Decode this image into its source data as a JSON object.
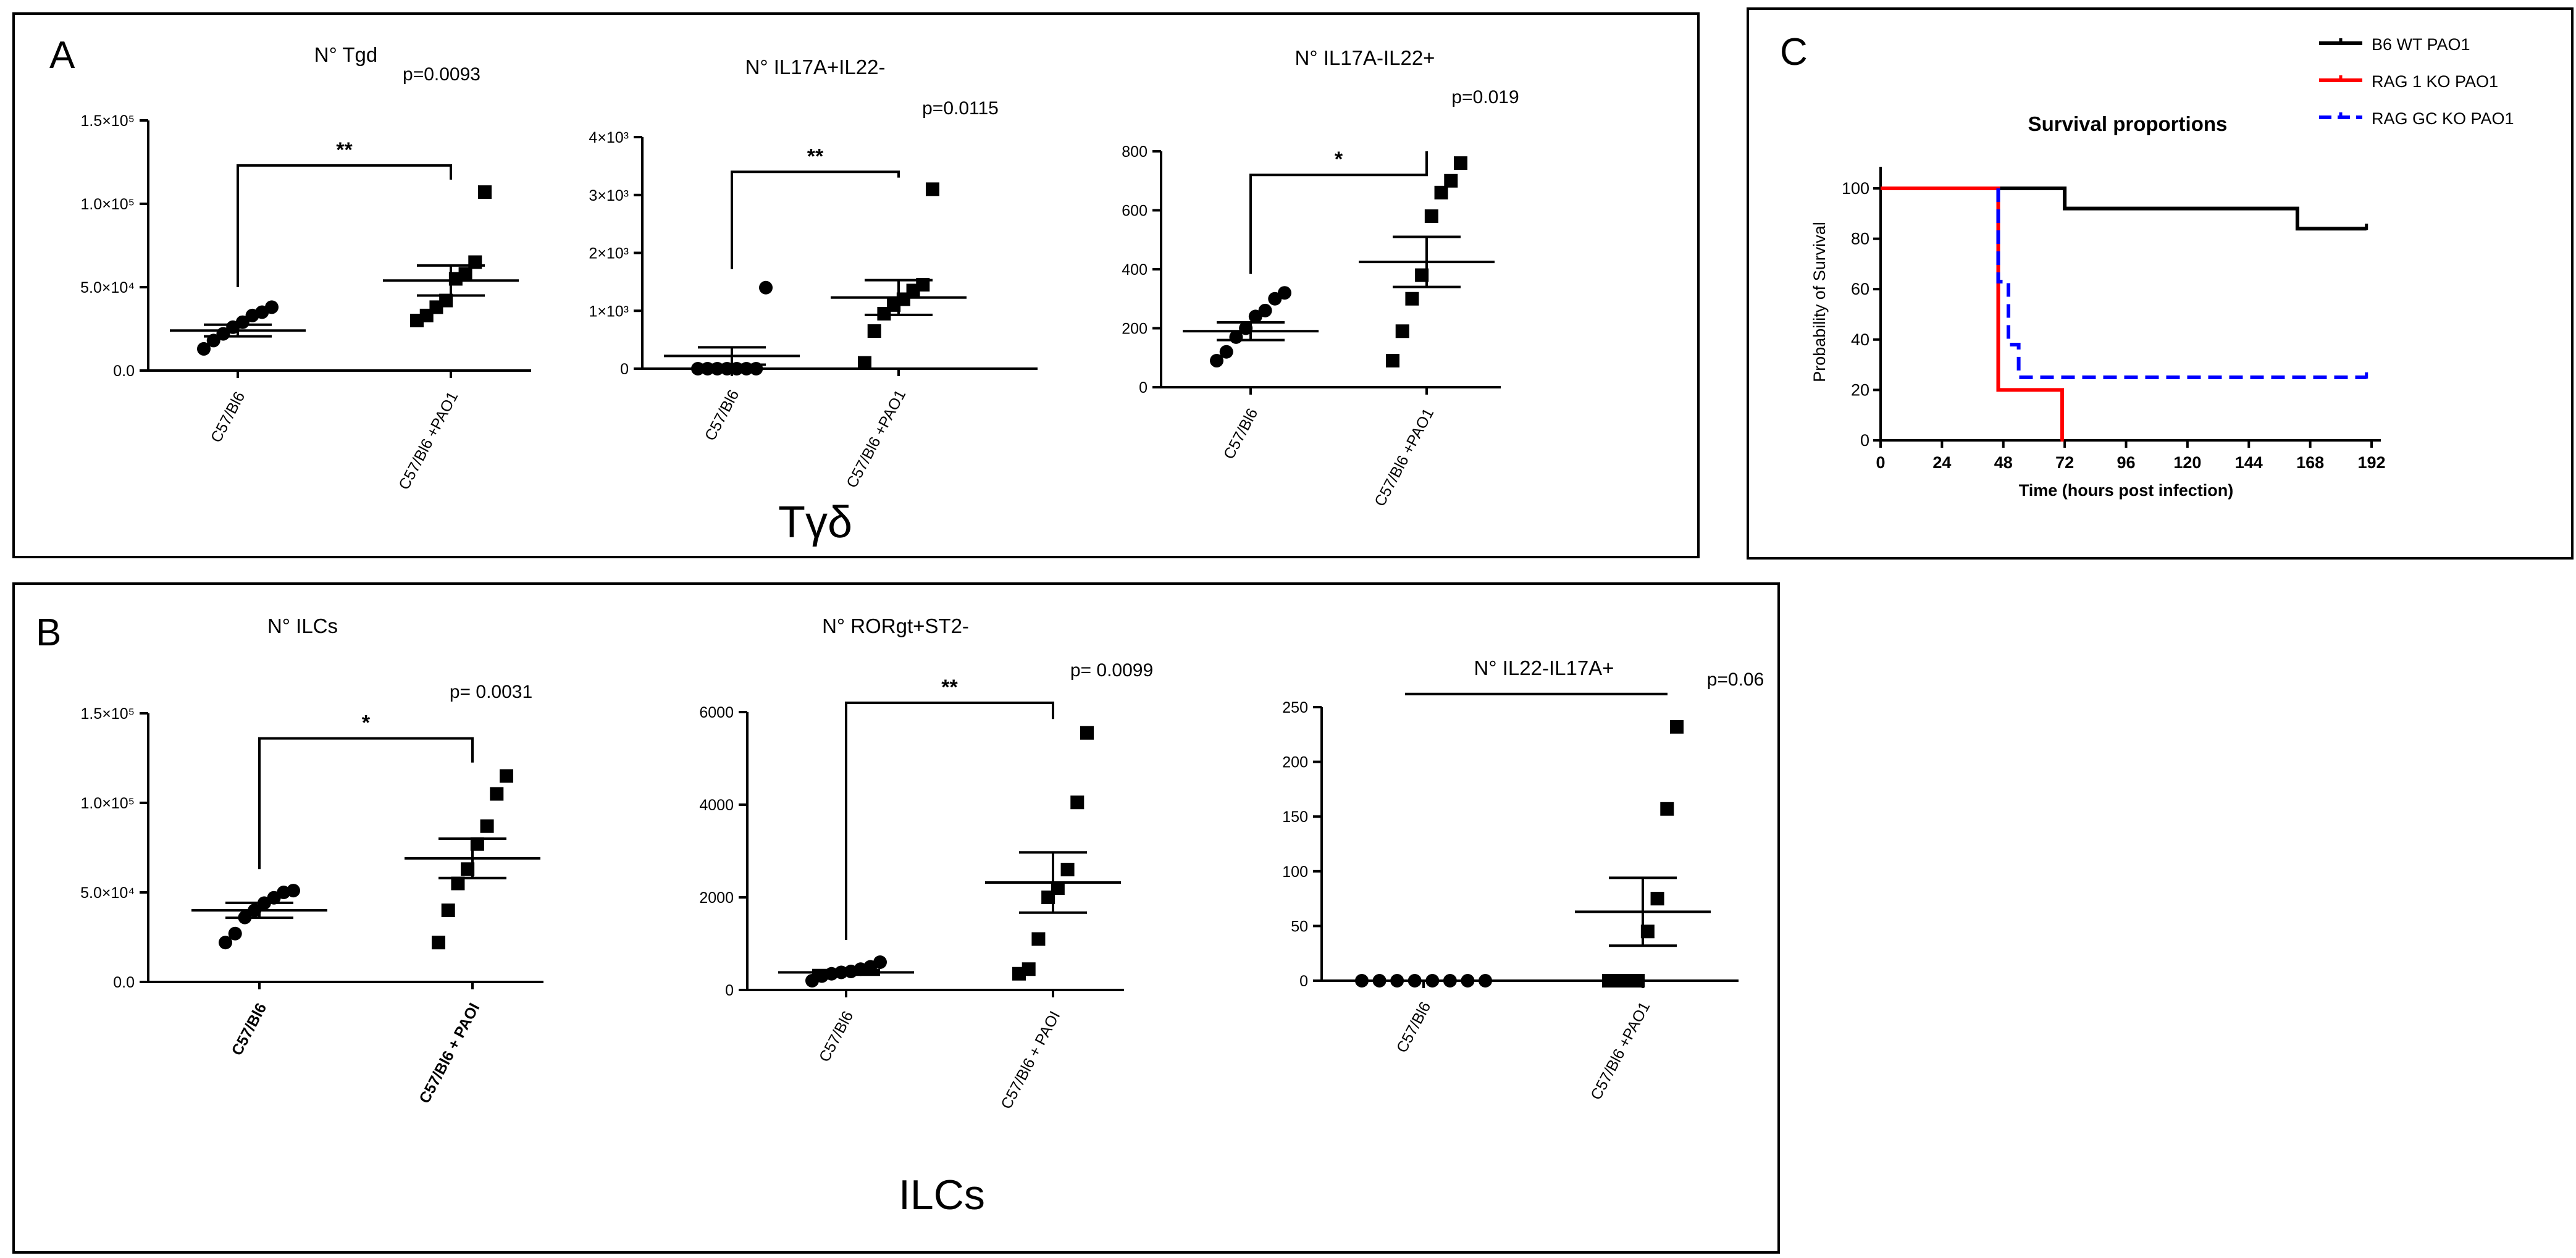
{
  "panel_a": {
    "letter": "A",
    "caption": "Tγδ"
  },
  "panel_b": {
    "letter": "B",
    "caption": "ILCs"
  },
  "panel_c": {
    "letter": "C"
  },
  "chart_data": [
    {
      "id": "a1",
      "type": "scatter",
      "title": "N° Tgd",
      "y_ticks": [
        "0.0",
        "5.0×10⁴",
        "1.0×10⁵",
        "1.5×10⁵"
      ],
      "ylim": [
        0,
        150000
      ],
      "categories": [
        "C57/Bl6",
        "C57/Bl6 +PAO1"
      ],
      "bold_categories": false,
      "groups": [
        {
          "name": "C57/Bl6",
          "marker": "circle",
          "values": [
            13000,
            18000,
            22000,
            26000,
            29000,
            33000,
            35000,
            38000
          ],
          "mean": 24000,
          "sem": 3500
        },
        {
          "name": "C57/Bl6 +PAO1",
          "marker": "square",
          "values": [
            30000,
            33000,
            38000,
            42000,
            55000,
            58000,
            65000,
            107000
          ],
          "mean": 54000,
          "sem": 9000
        }
      ],
      "significance": "**",
      "p_value": "p=0.0093",
      "bracket_to": 123000
    },
    {
      "id": "a2",
      "type": "scatter",
      "title": "N° IL17A+IL22-",
      "y_ticks": [
        "0",
        "1×10³",
        "2×10³",
        "3×10³",
        "4×10³"
      ],
      "ylim": [
        0,
        4000
      ],
      "categories": [
        "C57/Bl6",
        "C57/Bl6 +PAO1"
      ],
      "bold_categories": false,
      "groups": [
        {
          "name": "C57/Bl6",
          "marker": "circle",
          "values": [
            0,
            0,
            0,
            0,
            0,
            0,
            0,
            1400
          ],
          "mean": 220,
          "sem": 150
        },
        {
          "name": "C57/Bl6 +PAO1",
          "marker": "square",
          "values": [
            100,
            650,
            950,
            1100,
            1200,
            1350,
            1450,
            3100
          ],
          "mean": 1230,
          "sem": 300
        }
      ],
      "significance": "**",
      "p_value": "p=0.0115",
      "bracket_to": 3400
    },
    {
      "id": "a3",
      "type": "scatter",
      "title": "N° IL17A-IL22+",
      "y_ticks": [
        "0",
        "200",
        "400",
        "600",
        "800"
      ],
      "ylim": [
        0,
        800
      ],
      "categories": [
        "C57/Bl6",
        "C57/Bl6 +PAO1"
      ],
      "bold_categories": false,
      "groups": [
        {
          "name": "C57/Bl6",
          "marker": "circle",
          "values": [
            90,
            120,
            170,
            200,
            240,
            260,
            300,
            320
          ],
          "mean": 190,
          "sem": 30
        },
        {
          "name": "C57/Bl6 +PAO1",
          "marker": "square",
          "values": [
            90,
            190,
            300,
            380,
            580,
            660,
            700,
            760
          ],
          "mean": 425,
          "sem": 85
        }
      ],
      "significance": "*",
      "p_value": "p=0.019",
      "bracket_to": 720
    },
    {
      "id": "b1",
      "type": "scatter",
      "title": "N° ILCs",
      "y_ticks": [
        "0.0",
        "5.0×10⁴",
        "1.0×10⁵",
        "1.5×10⁵"
      ],
      "ylim": [
        0,
        150000
      ],
      "categories": [
        "C57/Bl6",
        "C57/Bl6 + PAOI"
      ],
      "bold_categories": true,
      "groups": [
        {
          "name": "C57/Bl6",
          "marker": "circle",
          "values": [
            22000,
            27000,
            36000,
            40000,
            44000,
            47000,
            50000,
            51000
          ],
          "mean": 40000,
          "sem": 4200
        },
        {
          "name": "C57/Bl6 + PAOI",
          "marker": "square",
          "values": [
            22000,
            40000,
            55000,
            63000,
            77000,
            87000,
            105000,
            115000
          ],
          "mean": 69000,
          "sem": 11000
        }
      ],
      "significance": "*",
      "p_value": "p= 0.0031",
      "bracket_to": 136000
    },
    {
      "id": "b2",
      "type": "scatter",
      "title": "N° RORgt+ST2-",
      "y_ticks": [
        "0",
        "2000",
        "4000",
        "6000"
      ],
      "ylim": [
        0,
        6000
      ],
      "categories": [
        "C57/Bl6",
        "C57/Bl6 + PAOI"
      ],
      "bold_categories": false,
      "groups": [
        {
          "name": "C57/Bl6",
          "marker": "circle",
          "values": [
            200,
            300,
            350,
            380,
            400,
            450,
            500,
            600
          ],
          "mean": 380,
          "sem": 50
        },
        {
          "name": "C57/Bl6 + PAOI",
          "marker": "square",
          "values": [
            350,
            450,
            1100,
            2000,
            2200,
            2600,
            4050,
            5550
          ],
          "mean": 2320,
          "sem": 650
        }
      ],
      "significance": "**",
      "p_value": "p= 0.0099",
      "bracket_to": 6200
    },
    {
      "id": "b3",
      "type": "scatter",
      "title": "N° IL22-IL17A+",
      "y_ticks": [
        "0",
        "50",
        "100",
        "150",
        "200",
        "250"
      ],
      "ylim": [
        0,
        250
      ],
      "categories": [
        "C57/Bl6",
        "C57/Bl6 +PAO1"
      ],
      "bold_categories": false,
      "groups": [
        {
          "name": "C57/Bl6",
          "marker": "circle",
          "values": [
            0,
            0,
            0,
            0,
            0,
            0,
            0,
            0
          ],
          "mean": 0,
          "sem": 0
        },
        {
          "name": "C57/Bl6 +PAO1",
          "marker": "square",
          "values": [
            0,
            0,
            0,
            0,
            45,
            75,
            157,
            232
          ],
          "mean": 63,
          "sem": 31
        }
      ],
      "significance": "",
      "p_value": "p=0.06",
      "bracket_to": 262
    },
    {
      "id": "c",
      "type": "line",
      "title": "Survival proportions",
      "xlabel": "Time (hours post infection)",
      "ylabel": "Probability of Survival",
      "x_ticks": [
        "0",
        "24",
        "48",
        "72",
        "96",
        "120",
        "144",
        "168",
        "192"
      ],
      "xlim": [
        0,
        192
      ],
      "y_ticks": [
        "0",
        "20",
        "40",
        "60",
        "80",
        "100"
      ],
      "ylim": [
        0,
        100
      ],
      "series": [
        {
          "name": "B6 WT PAO1",
          "color": "#000000",
          "dash": false,
          "x": [
            0,
            72,
            72,
            163,
            163,
            190
          ],
          "y": [
            100,
            100,
            92,
            92,
            84,
            84
          ]
        },
        {
          "name": "RAG 1 KO PAO1",
          "color": "#ff0000",
          "dash": false,
          "x": [
            0,
            46,
            46,
            71,
            71
          ],
          "y": [
            100,
            100,
            20,
            20,
            0
          ]
        },
        {
          "name": "RAG GC KO PAO1",
          "color": "#0000ff",
          "dash": true,
          "x": [
            46,
            46,
            50,
            50,
            54,
            54,
            190
          ],
          "y": [
            100,
            63,
            63,
            38,
            38,
            25,
            25
          ]
        }
      ]
    }
  ]
}
